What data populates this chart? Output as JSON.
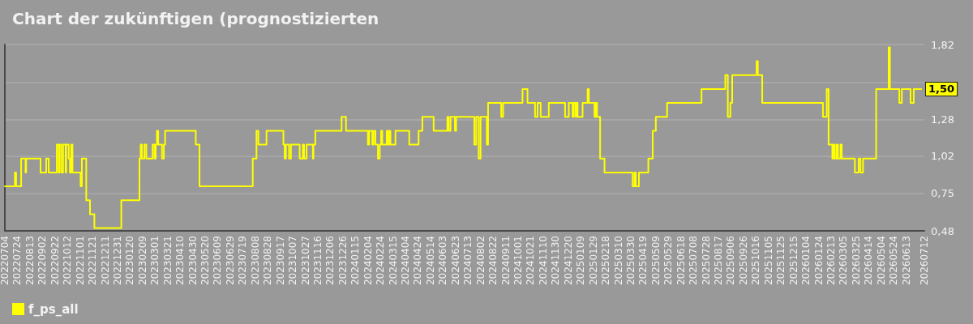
{
  "chart_data": {
    "type": "step",
    "title": "Chart der zukünftigen (prognostizierten",
    "series": [
      {
        "name": "f_ps_all",
        "color": "#ffff00",
        "x": [
          "2022-07-04",
          "2022-07-20",
          "2022-07-22",
          "2022-07-30",
          "2022-08-06",
          "2022-08-07",
          "2022-08-30",
          "2022-09-08",
          "2022-09-12",
          "2022-09-25",
          "2022-09-28",
          "2022-09-29",
          "2022-10-02",
          "2022-10-05",
          "2022-10-09",
          "2022-10-10",
          "2022-10-14",
          "2022-10-16",
          "2022-10-18",
          "2022-10-20",
          "2022-11-02",
          "2022-11-04",
          "2022-11-11",
          "2022-11-17",
          "2022-11-24",
          "2023-01-06",
          "2023-02-04",
          "2023-02-06",
          "2023-02-08",
          "2023-02-12",
          "2023-02-15",
          "2023-02-25",
          "2023-02-28",
          "2023-03-02",
          "2023-03-04",
          "2023-03-06",
          "2023-03-12",
          "2023-03-15",
          "2023-03-17",
          "2023-05-05",
          "2023-05-11",
          "2023-08-04",
          "2023-08-10",
          "2023-08-13",
          "2023-08-26",
          "2023-09-22",
          "2023-09-24",
          "2023-09-26",
          "2023-10-01",
          "2023-10-04",
          "2023-10-18",
          "2023-10-23",
          "2023-10-25",
          "2023-10-29",
          "2023-11-08",
          "2023-11-09",
          "2023-11-12",
          "2023-12-24",
          "2023-12-31",
          "2024-02-04",
          "2024-02-06",
          "2024-02-11",
          "2024-02-13",
          "2024-02-16",
          "2024-02-20",
          "2024-02-23",
          "2024-02-25",
          "2024-02-27",
          "2024-03-05",
          "2024-03-07",
          "2024-03-09",
          "2024-03-11",
          "2024-03-19",
          "2024-04-10",
          "2024-04-25",
          "2024-05-01",
          "2024-05-19",
          "2024-06-10",
          "2024-06-12",
          "2024-06-15",
          "2024-06-22",
          "2024-06-24",
          "2024-07-23",
          "2024-07-26",
          "2024-07-30",
          "2024-08-02",
          "2024-08-12",
          "2024-08-14",
          "2024-09-04",
          "2024-09-07",
          "2024-10-08",
          "2024-10-16",
          "2024-10-28",
          "2024-11-01",
          "2024-11-06",
          "2024-11-19",
          "2024-12-15",
          "2024-12-21",
          "2024-12-27",
          "2024-12-29",
          "2025-01-01",
          "2025-01-02",
          "2025-01-04",
          "2025-01-12",
          "2025-01-20",
          "2025-01-22",
          "2025-01-31",
          "2025-02-02",
          "2025-02-04",
          "2025-02-09",
          "2025-02-16",
          "2025-04-02",
          "2025-04-05",
          "2025-04-07",
          "2025-04-12",
          "2025-04-27",
          "2025-05-04",
          "2025-05-09",
          "2025-05-27",
          "2025-07-21",
          "2025-08-28",
          "2025-09-01",
          "2025-09-05",
          "2025-09-08",
          "2025-10-17",
          "2025-10-19",
          "2025-10-26",
          "2026-01-31",
          "2026-02-06",
          "2026-02-09",
          "2026-02-15",
          "2026-02-17",
          "2026-02-19",
          "2026-02-22",
          "2026-02-24",
          "2026-02-28",
          "2026-03-02",
          "2026-03-23",
          "2026-03-29",
          "2026-04-01",
          "2026-04-05",
          "2026-04-26",
          "2026-05-16",
          "2026-05-18",
          "2026-06-02",
          "2026-06-06",
          "2026-06-20",
          "2026-06-25",
          "2026-07-07"
        ],
        "values": [
          0.8,
          0.9,
          0.8,
          1.0,
          0.9,
          1.0,
          0.9,
          1.0,
          0.9,
          1.1,
          0.9,
          1.1,
          0.9,
          1.1,
          0.9,
          1.1,
          1.0,
          0.9,
          1.1,
          0.9,
          0.8,
          1.0,
          0.7,
          0.6,
          0.5,
          0.7,
          1.0,
          1.1,
          1.0,
          1.1,
          1.0,
          1.1,
          1.0,
          1.1,
          1.2,
          1.1,
          1.0,
          1.1,
          1.2,
          1.1,
          0.8,
          1.0,
          1.2,
          1.1,
          1.2,
          1.1,
          1.0,
          1.1,
          1.0,
          1.1,
          1.0,
          1.1,
          1.0,
          1.1,
          1.0,
          1.1,
          1.2,
          1.3,
          1.2,
          1.1,
          1.2,
          1.1,
          1.2,
          1.1,
          1.0,
          1.1,
          1.2,
          1.1,
          1.2,
          1.1,
          1.2,
          1.1,
          1.2,
          1.1,
          1.2,
          1.3,
          1.2,
          1.3,
          1.2,
          1.3,
          1.2,
          1.3,
          1.1,
          1.3,
          1.0,
          1.3,
          1.1,
          1.4,
          1.3,
          1.4,
          1.5,
          1.4,
          1.3,
          1.4,
          1.3,
          1.4,
          1.3,
          1.4,
          1.3,
          1.4,
          1.3,
          1.4,
          1.3,
          1.4,
          1.5,
          1.4,
          1.3,
          1.4,
          1.3,
          1.0,
          0.9,
          0.8,
          0.9,
          0.8,
          0.9,
          1.0,
          1.2,
          1.3,
          1.4,
          1.5,
          1.6,
          1.3,
          1.4,
          1.6,
          1.7,
          1.6,
          1.4,
          1.3,
          1.5,
          1.1,
          1.0,
          1.1,
          1.0,
          1.1,
          1.0,
          1.1,
          1.0,
          0.9,
          1.0,
          0.9,
          1.0,
          1.5,
          1.8,
          1.5,
          1.4,
          1.5,
          1.4,
          1.5,
          1.5
        ]
      }
    ],
    "xlim": [
      "2022-07-04",
      "2026-07-12"
    ],
    "xticks": [
      {
        "value": "2022-07-04",
        "label": "20220704"
      },
      {
        "value": "2022-07-24",
        "label": "20220724"
      },
      {
        "value": "2022-08-13",
        "label": "20220813"
      },
      {
        "value": "2022-09-02",
        "label": "20220902"
      },
      {
        "value": "2022-09-22",
        "label": "20220922"
      },
      {
        "value": "2022-10-12",
        "label": "20221012"
      },
      {
        "value": "2022-11-01",
        "label": "20221101"
      },
      {
        "value": "2022-11-21",
        "label": "20221121"
      },
      {
        "value": "2022-12-11",
        "label": "20221211"
      },
      {
        "value": "2022-12-31",
        "label": "20221231"
      },
      {
        "value": "2023-01-20",
        "label": "20230120"
      },
      {
        "value": "2023-02-09",
        "label": "20230209"
      },
      {
        "value": "2023-03-01",
        "label": "20230301"
      },
      {
        "value": "2023-03-21",
        "label": "20230321"
      },
      {
        "value": "2023-04-10",
        "label": "20230410"
      },
      {
        "value": "2023-04-30",
        "label": "20230430"
      },
      {
        "value": "2023-05-20",
        "label": "20230520"
      },
      {
        "value": "2023-06-09",
        "label": "20230609"
      },
      {
        "value": "2023-06-29",
        "label": "20230629"
      },
      {
        "value": "2023-07-19",
        "label": "20230719"
      },
      {
        "value": "2023-08-08",
        "label": "20230808"
      },
      {
        "value": "2023-08-28",
        "label": "20230828"
      },
      {
        "value": "2023-09-17",
        "label": "20230917"
      },
      {
        "value": "2023-10-07",
        "label": "20231007"
      },
      {
        "value": "2023-10-27",
        "label": "20231027"
      },
      {
        "value": "2023-11-16",
        "label": "20231116"
      },
      {
        "value": "2023-12-06",
        "label": "20231206"
      },
      {
        "value": "2023-12-26",
        "label": "20231226"
      },
      {
        "value": "2024-01-15",
        "label": "20240115"
      },
      {
        "value": "2024-02-04",
        "label": "20240204"
      },
      {
        "value": "2024-02-24",
        "label": "20240224"
      },
      {
        "value": "2024-03-15",
        "label": "20240315"
      },
      {
        "value": "2024-04-04",
        "label": "20240404"
      },
      {
        "value": "2024-04-24",
        "label": "20240424"
      },
      {
        "value": "2024-05-14",
        "label": "20240514"
      },
      {
        "value": "2024-06-03",
        "label": "20240603"
      },
      {
        "value": "2024-06-23",
        "label": "20240623"
      },
      {
        "value": "2024-07-13",
        "label": "20240713"
      },
      {
        "value": "2024-08-02",
        "label": "20240802"
      },
      {
        "value": "2024-08-22",
        "label": "20240822"
      },
      {
        "value": "2024-09-11",
        "label": "20240911"
      },
      {
        "value": "2024-10-01",
        "label": "20241001"
      },
      {
        "value": "2024-10-21",
        "label": "20241021"
      },
      {
        "value": "2024-11-10",
        "label": "20241110"
      },
      {
        "value": "2024-11-30",
        "label": "20241130"
      },
      {
        "value": "2024-12-20",
        "label": "20241220"
      },
      {
        "value": "2025-01-09",
        "label": "20250109"
      },
      {
        "value": "2025-01-29",
        "label": "20250129"
      },
      {
        "value": "2025-02-18",
        "label": "20250218"
      },
      {
        "value": "2025-03-10",
        "label": "20250310"
      },
      {
        "value": "2025-03-30",
        "label": "20250330"
      },
      {
        "value": "2025-04-19",
        "label": "20250419"
      },
      {
        "value": "2025-05-09",
        "label": "20250509"
      },
      {
        "value": "2025-05-29",
        "label": "20250529"
      },
      {
        "value": "2025-06-18",
        "label": "20250618"
      },
      {
        "value": "2025-07-08",
        "label": "20250708"
      },
      {
        "value": "2025-07-28",
        "label": "20250728"
      },
      {
        "value": "2025-08-17",
        "label": "20250817"
      },
      {
        "value": "2025-09-06",
        "label": "20250906"
      },
      {
        "value": "2025-09-26",
        "label": "20250926"
      },
      {
        "value": "2025-10-16",
        "label": "20251016"
      },
      {
        "value": "2025-11-05",
        "label": "20251105"
      },
      {
        "value": "2025-11-25",
        "label": "20251125"
      },
      {
        "value": "2025-12-15",
        "label": "20251215"
      },
      {
        "value": "2026-01-04",
        "label": "20260104"
      },
      {
        "value": "2026-01-24",
        "label": "20260124"
      },
      {
        "value": "2026-02-13",
        "label": "20260213"
      },
      {
        "value": "2026-03-05",
        "label": "20260305"
      },
      {
        "value": "2026-03-25",
        "label": "20260325"
      },
      {
        "value": "2026-04-14",
        "label": "20260414"
      },
      {
        "value": "2026-05-04",
        "label": "20260504"
      },
      {
        "value": "2026-05-24",
        "label": "20260524"
      },
      {
        "value": "2026-06-13",
        "label": "20260613"
      },
      {
        "value": "2026-07-12",
        "label": "20260712"
      }
    ],
    "ylim": [
      0.48,
      1.82
    ],
    "yticks": [
      {
        "value": 0.48,
        "label": "0,48"
      },
      {
        "value": 0.75,
        "label": "0,75"
      },
      {
        "value": 1.02,
        "label": "1,02"
      },
      {
        "value": 1.28,
        "label": "1,28"
      },
      {
        "value": 1.55,
        "label": null
      },
      {
        "value": 1.82,
        "label": "1,82"
      }
    ],
    "grid": "y",
    "legend": "bottom left",
    "annotations": [
      {
        "text": "1,50",
        "y": 1.5
      }
    ]
  }
}
